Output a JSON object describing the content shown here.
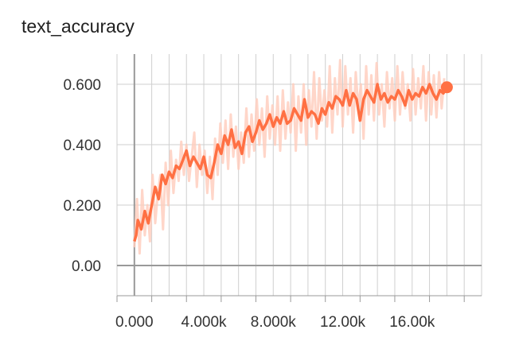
{
  "title": "text_accuracy",
  "colors": {
    "smoothed": "#ff7043",
    "raw": "#ffccbc",
    "grid": "#cfcfcf",
    "zero_axis": "#999999",
    "text": "#333333"
  },
  "chart_data": {
    "type": "line",
    "title": "text_accuracy",
    "xlabel": "",
    "ylabel": "",
    "xlim": [
      -1000,
      20000
    ],
    "ylim": [
      -0.1,
      0.7
    ],
    "grid": true,
    "x_ticks": [
      0,
      4000,
      8000,
      12000,
      16000
    ],
    "x_tick_labels": [
      "0.000",
      "4.000k",
      "8.000k",
      "12.00k",
      "16.00k"
    ],
    "y_ticks": [
      0,
      0.2,
      0.4,
      0.6
    ],
    "y_tick_labels": [
      "0.00",
      "0.200",
      "0.400",
      "0.600"
    ],
    "series": [
      {
        "role": "smoothed",
        "color": "#ff7043",
        "x": [
          0,
          100,
          200,
          400,
          600,
          800,
          1000,
          1200,
          1400,
          1600,
          1800,
          2000,
          2200,
          2400,
          2600,
          2800,
          3000,
          3200,
          3400,
          3600,
          3800,
          4000,
          4200,
          4400,
          4600,
          4800,
          5000,
          5200,
          5400,
          5600,
          5800,
          6000,
          6200,
          6400,
          6600,
          6800,
          7000,
          7200,
          7400,
          7600,
          7800,
          8000,
          8200,
          8400,
          8600,
          8800,
          9000,
          9200,
          9400,
          9600,
          9800,
          10000,
          10200,
          10400,
          10600,
          10800,
          11000,
          11200,
          11400,
          11600,
          11800,
          12000,
          12200,
          12400,
          12600,
          12800,
          13000,
          13200,
          13400,
          13600,
          13800,
          14000,
          14200,
          14400,
          14600,
          14800,
          15000,
          15200,
          15400,
          15600,
          15800,
          16000,
          16200,
          16400,
          16600,
          16800,
          17000,
          17200,
          17400,
          17600,
          17800,
          18000
        ],
        "y": [
          0.08,
          0.1,
          0.15,
          0.12,
          0.18,
          0.14,
          0.2,
          0.26,
          0.22,
          0.3,
          0.27,
          0.31,
          0.29,
          0.33,
          0.32,
          0.35,
          0.38,
          0.33,
          0.36,
          0.34,
          0.32,
          0.36,
          0.3,
          0.29,
          0.34,
          0.4,
          0.37,
          0.43,
          0.4,
          0.45,
          0.39,
          0.41,
          0.37,
          0.44,
          0.46,
          0.41,
          0.44,
          0.48,
          0.45,
          0.47,
          0.5,
          0.46,
          0.49,
          0.47,
          0.51,
          0.47,
          0.48,
          0.52,
          0.5,
          0.48,
          0.55,
          0.49,
          0.51,
          0.5,
          0.47,
          0.52,
          0.5,
          0.54,
          0.52,
          0.56,
          0.55,
          0.53,
          0.58,
          0.53,
          0.57,
          0.55,
          0.48,
          0.55,
          0.58,
          0.56,
          0.54,
          0.6,
          0.55,
          0.57,
          0.54,
          0.56,
          0.55,
          0.58,
          0.56,
          0.53,
          0.58,
          0.55,
          0.57,
          0.56,
          0.59,
          0.57,
          0.6,
          0.57,
          0.55,
          0.58,
          0.57,
          0.59
        ]
      },
      {
        "role": "raw",
        "color": "#ffccbc",
        "x": [
          0,
          150,
          300,
          450,
          600,
          750,
          900,
          1050,
          1200,
          1350,
          1500,
          1650,
          1800,
          1950,
          2100,
          2250,
          2400,
          2550,
          2700,
          2850,
          3000,
          3150,
          3300,
          3450,
          3600,
          3750,
          3900,
          4050,
          4200,
          4350,
          4500,
          4650,
          4800,
          4950,
          5100,
          5250,
          5400,
          5550,
          5700,
          5850,
          6000,
          6150,
          6300,
          6450,
          6600,
          6750,
          6900,
          7050,
          7200,
          7350,
          7500,
          7650,
          7800,
          7950,
          8100,
          8250,
          8400,
          8550,
          8700,
          8850,
          9000,
          9150,
          9300,
          9450,
          9600,
          9750,
          9900,
          10050,
          10200,
          10350,
          10500,
          10650,
          10800,
          10950,
          11100,
          11250,
          11400,
          11550,
          11700,
          11850,
          12000,
          12150,
          12300,
          12450,
          12600,
          12750,
          12900,
          13050,
          13200,
          13350,
          13500,
          13650,
          13800,
          13950,
          14100,
          14250,
          14400,
          14550,
          14700,
          14850,
          15000,
          15150,
          15300,
          15450,
          15600,
          15750,
          15900,
          16050,
          16200,
          16350,
          16500,
          16650,
          16800,
          16950,
          17100,
          17250,
          17400,
          17550,
          17700,
          17850
        ],
        "y": [
          0.06,
          0.22,
          0.04,
          0.25,
          0.1,
          0.2,
          0.08,
          0.3,
          0.14,
          0.24,
          0.3,
          0.12,
          0.34,
          0.2,
          0.38,
          0.24,
          0.35,
          0.28,
          0.41,
          0.3,
          0.4,
          0.28,
          0.36,
          0.44,
          0.26,
          0.4,
          0.3,
          0.38,
          0.24,
          0.36,
          0.22,
          0.42,
          0.3,
          0.47,
          0.34,
          0.48,
          0.32,
          0.5,
          0.36,
          0.46,
          0.32,
          0.44,
          0.34,
          0.52,
          0.36,
          0.5,
          0.38,
          0.55,
          0.4,
          0.52,
          0.36,
          0.56,
          0.42,
          0.53,
          0.4,
          0.56,
          0.38,
          0.58,
          0.42,
          0.54,
          0.44,
          0.6,
          0.38,
          0.56,
          0.44,
          0.6,
          0.4,
          0.58,
          0.46,
          0.64,
          0.42,
          0.62,
          0.48,
          0.58,
          0.46,
          0.66,
          0.44,
          0.62,
          0.5,
          0.68,
          0.46,
          0.66,
          0.5,
          0.62,
          0.44,
          0.64,
          0.52,
          0.6,
          0.42,
          0.66,
          0.5,
          0.63,
          0.48,
          0.67,
          0.5,
          0.6,
          0.46,
          0.64,
          0.52,
          0.62,
          0.48,
          0.66,
          0.5,
          0.64,
          0.52,
          0.6,
          0.48,
          0.65,
          0.5,
          0.62,
          0.52,
          0.66,
          0.48,
          0.64,
          0.5,
          0.63,
          0.49,
          0.64,
          0.52,
          0.62
        ]
      }
    ],
    "last_point": {
      "x": 18000,
      "y": 0.59
    }
  }
}
